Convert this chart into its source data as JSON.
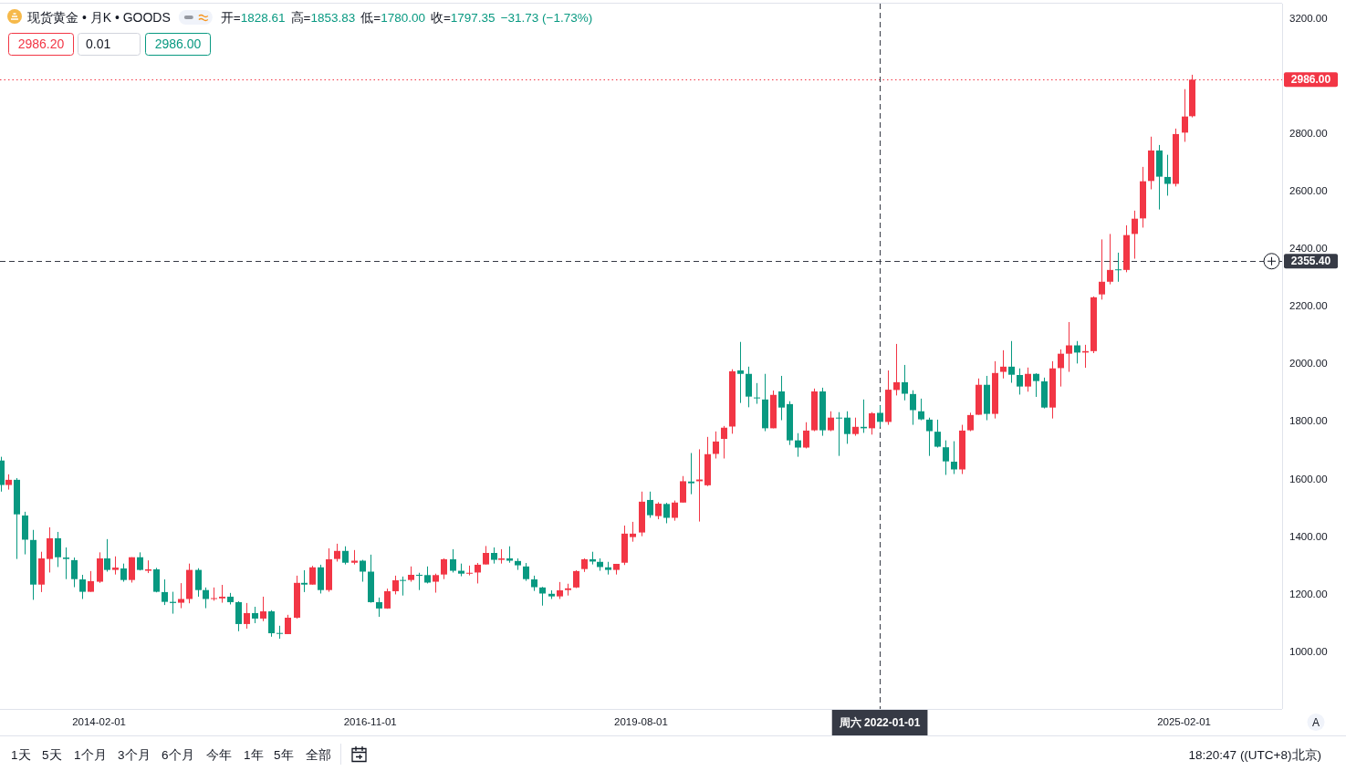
{
  "chart_data": {
    "type": "candlestick",
    "title": "现货黄金 • 月K • GOODS",
    "x": [
      "2013-02",
      "2013-03",
      "2013-04",
      "2013-05",
      "2013-06",
      "2013-07",
      "2013-08",
      "2013-09",
      "2013-10",
      "2013-11",
      "2013-12",
      "2014-01",
      "2014-02",
      "2014-03",
      "2014-04",
      "2014-05",
      "2014-06",
      "2014-07",
      "2014-08",
      "2014-09",
      "2014-10",
      "2014-11",
      "2014-12",
      "2015-01",
      "2015-02",
      "2015-03",
      "2015-04",
      "2015-05",
      "2015-06",
      "2015-07",
      "2015-08",
      "2015-09",
      "2015-10",
      "2015-11",
      "2015-12",
      "2016-01",
      "2016-02",
      "2016-03",
      "2016-04",
      "2016-05",
      "2016-06",
      "2016-07",
      "2016-08",
      "2016-09",
      "2016-10",
      "2016-11",
      "2016-12",
      "2017-01",
      "2017-02",
      "2017-03",
      "2017-04",
      "2017-05",
      "2017-06",
      "2017-07",
      "2017-08",
      "2017-09",
      "2017-10",
      "2017-11",
      "2017-12",
      "2018-01",
      "2018-02",
      "2018-03",
      "2018-04",
      "2018-05",
      "2018-06",
      "2018-07",
      "2018-08",
      "2018-09",
      "2018-10",
      "2018-11",
      "2018-12",
      "2019-01",
      "2019-02",
      "2019-03",
      "2019-04",
      "2019-05",
      "2019-06",
      "2019-07",
      "2019-08",
      "2019-09",
      "2019-10",
      "2019-11",
      "2019-12",
      "2020-01",
      "2020-02",
      "2020-03",
      "2020-04",
      "2020-05",
      "2020-06",
      "2020-07",
      "2020-08",
      "2020-09",
      "2020-10",
      "2020-11",
      "2020-12",
      "2021-01",
      "2021-02",
      "2021-03",
      "2021-04",
      "2021-05",
      "2021-06",
      "2021-07",
      "2021-08",
      "2021-09",
      "2021-10",
      "2021-11",
      "2021-12",
      "2022-01",
      "2022-02",
      "2022-03",
      "2022-04",
      "2022-05",
      "2022-06",
      "2022-07",
      "2022-08",
      "2022-09",
      "2022-10",
      "2022-11",
      "2022-12",
      "2023-01",
      "2023-02",
      "2023-03",
      "2023-04",
      "2023-05",
      "2023-06",
      "2023-07",
      "2023-08",
      "2023-09",
      "2023-10",
      "2023-11",
      "2023-12",
      "2024-01",
      "2024-02",
      "2024-03",
      "2024-04",
      "2024-05",
      "2024-06",
      "2024-07",
      "2024-08",
      "2024-09",
      "2024-10",
      "2024-11",
      "2024-12",
      "2025-01",
      "2025-02",
      "2025-03"
    ],
    "ohlc": [
      [
        1663,
        1676,
        1555,
        1578
      ],
      [
        1578,
        1615,
        1562,
        1596
      ],
      [
        1596,
        1602,
        1321,
        1476
      ],
      [
        1472,
        1485,
        1337,
        1388
      ],
      [
        1387,
        1422,
        1179,
        1232
      ],
      [
        1232,
        1346,
        1206,
        1323
      ],
      [
        1321,
        1431,
        1274,
        1393
      ],
      [
        1393,
        1415,
        1293,
        1327
      ],
      [
        1326,
        1361,
        1251,
        1321
      ],
      [
        1317,
        1326,
        1223,
        1251
      ],
      [
        1250,
        1266,
        1182,
        1207
      ],
      [
        1207,
        1279,
        1207,
        1244
      ],
      [
        1242,
        1344,
        1238,
        1323
      ],
      [
        1323,
        1390,
        1277,
        1283
      ],
      [
        1283,
        1330,
        1267,
        1291
      ],
      [
        1288,
        1305,
        1242,
        1248
      ],
      [
        1248,
        1327,
        1239,
        1327
      ],
      [
        1327,
        1344,
        1281,
        1283
      ],
      [
        1280,
        1316,
        1272,
        1285
      ],
      [
        1285,
        1290,
        1205,
        1207
      ],
      [
        1206,
        1250,
        1161,
        1172
      ],
      [
        1172,
        1207,
        1131,
        1168
      ],
      [
        1169,
        1237,
        1150,
        1182
      ],
      [
        1182,
        1305,
        1167,
        1283
      ],
      [
        1283,
        1289,
        1190,
        1213
      ],
      [
        1213,
        1222,
        1150,
        1182
      ],
      [
        1182,
        1222,
        1176,
        1185
      ],
      [
        1184,
        1231,
        1169,
        1190
      ],
      [
        1190,
        1203,
        1163,
        1171
      ],
      [
        1171,
        1174,
        1070,
        1095
      ],
      [
        1095,
        1168,
        1079,
        1133
      ],
      [
        1133,
        1155,
        1098,
        1114
      ],
      [
        1114,
        1190,
        1105,
        1139
      ],
      [
        1139,
        1143,
        1051,
        1063
      ],
      [
        1064,
        1089,
        1044,
        1061
      ],
      [
        1060,
        1127,
        1060,
        1117
      ],
      [
        1117,
        1263,
        1114,
        1238
      ],
      [
        1238,
        1282,
        1206,
        1232
      ],
      [
        1232,
        1297,
        1232,
        1292
      ],
      [
        1292,
        1301,
        1201,
        1213
      ],
      [
        1213,
        1358,
        1207,
        1320
      ],
      [
        1321,
        1374,
        1312,
        1349
      ],
      [
        1349,
        1365,
        1302,
        1308
      ],
      [
        1308,
        1352,
        1302,
        1315
      ],
      [
        1315,
        1318,
        1242,
        1277
      ],
      [
        1277,
        1336,
        1169,
        1171
      ],
      [
        1171,
        1187,
        1120,
        1149
      ],
      [
        1149,
        1218,
        1148,
        1209
      ],
      [
        1209,
        1263,
        1198,
        1247
      ],
      [
        1248,
        1260,
        1194,
        1246
      ],
      [
        1248,
        1295,
        1242,
        1266
      ],
      [
        1266,
        1273,
        1213,
        1265
      ],
      [
        1265,
        1295,
        1236,
        1239
      ],
      [
        1242,
        1270,
        1204,
        1265
      ],
      [
        1267,
        1323,
        1251,
        1320
      ],
      [
        1320,
        1355,
        1274,
        1280
      ],
      [
        1280,
        1305,
        1261,
        1270
      ],
      [
        1270,
        1298,
        1264,
        1273
      ],
      [
        1274,
        1307,
        1236,
        1301
      ],
      [
        1302,
        1366,
        1302,
        1342
      ],
      [
        1342,
        1361,
        1305,
        1318
      ],
      [
        1318,
        1355,
        1305,
        1323
      ],
      [
        1323,
        1365,
        1308,
        1315
      ],
      [
        1314,
        1323,
        1283,
        1299
      ],
      [
        1295,
        1307,
        1245,
        1251
      ],
      [
        1250,
        1263,
        1210,
        1223
      ],
      [
        1222,
        1224,
        1159,
        1201
      ],
      [
        1200,
        1212,
        1182,
        1191
      ],
      [
        1191,
        1241,
        1182,
        1212
      ],
      [
        1213,
        1235,
        1194,
        1219
      ],
      [
        1222,
        1282,
        1220,
        1279
      ],
      [
        1286,
        1323,
        1276,
        1320
      ],
      [
        1320,
        1346,
        1302,
        1312
      ],
      [
        1311,
        1323,
        1280,
        1293
      ],
      [
        1292,
        1311,
        1267,
        1283
      ],
      [
        1283,
        1304,
        1267,
        1304
      ],
      [
        1308,
        1437,
        1300,
        1409
      ],
      [
        1397,
        1450,
        1381,
        1409
      ],
      [
        1413,
        1555,
        1400,
        1520
      ],
      [
        1526,
        1555,
        1464,
        1473
      ],
      [
        1470,
        1518,
        1459,
        1513
      ],
      [
        1512,
        1516,
        1445,
        1464
      ],
      [
        1464,
        1524,
        1454,
        1517
      ],
      [
        1517,
        1609,
        1517,
        1591
      ],
      [
        1590,
        1689,
        1546,
        1584
      ],
      [
        1591,
        1702,
        1451,
        1597
      ],
      [
        1577,
        1745,
        1574,
        1685
      ],
      [
        1686,
        1764,
        1670,
        1729
      ],
      [
        1738,
        1783,
        1670,
        1777
      ],
      [
        1781,
        1980,
        1756,
        1973
      ],
      [
        1976,
        2075,
        1863,
        1964
      ],
      [
        1964,
        1989,
        1848,
        1885
      ],
      [
        1882,
        1932,
        1860,
        1879
      ],
      [
        1875,
        1964,
        1765,
        1775
      ],
      [
        1775,
        1906,
        1775,
        1891
      ],
      [
        1903,
        1957,
        1803,
        1847
      ],
      [
        1859,
        1869,
        1717,
        1733
      ],
      [
        1733,
        1758,
        1676,
        1708
      ],
      [
        1708,
        1796,
        1705,
        1767
      ],
      [
        1768,
        1913,
        1765,
        1903
      ],
      [
        1903,
        1916,
        1749,
        1768
      ],
      [
        1768,
        1834,
        1765,
        1812
      ],
      [
        1812,
        1831,
        1679,
        1810
      ],
      [
        1812,
        1834,
        1721,
        1755
      ],
      [
        1755,
        1812,
        1749,
        1780
      ],
      [
        1780,
        1875,
        1759,
        1775
      ],
      [
        1775,
        1831,
        1753,
        1827
      ],
      [
        1828.61,
        1853.83,
        1780.0,
        1797.35
      ],
      [
        1797,
        1976,
        1787,
        1909
      ],
      [
        1908,
        2068,
        1889,
        1935
      ],
      [
        1935,
        1995,
        1872,
        1895
      ],
      [
        1894,
        1907,
        1787,
        1838
      ],
      [
        1834,
        1878,
        1803,
        1806
      ],
      [
        1805,
        1812,
        1679,
        1765
      ],
      [
        1763,
        1805,
        1708,
        1711
      ],
      [
        1709,
        1733,
        1613,
        1660
      ],
      [
        1659,
        1730,
        1616,
        1632
      ],
      [
        1632,
        1787,
        1616,
        1767
      ],
      [
        1768,
        1829,
        1765,
        1821
      ],
      [
        1822,
        1948,
        1822,
        1926
      ],
      [
        1926,
        1957,
        1803,
        1825
      ],
      [
        1825,
        2008,
        1809,
        1967
      ],
      [
        1971,
        2046,
        1948,
        1989
      ],
      [
        1989,
        2078,
        1933,
        1961
      ],
      [
        1960,
        1983,
        1892,
        1920
      ],
      [
        1920,
        1986,
        1902,
        1964
      ],
      [
        1964,
        1966,
        1884,
        1939
      ],
      [
        1938,
        1951,
        1844,
        1847
      ],
      [
        1847,
        2008,
        1809,
        1983
      ],
      [
        1984,
        2049,
        1920,
        2034
      ],
      [
        2034,
        2144,
        1971,
        2063
      ],
      [
        2063,
        2078,
        2000,
        2038
      ],
      [
        2038,
        2065,
        1985,
        2043
      ],
      [
        2043,
        2233,
        2036,
        2230
      ],
      [
        2240,
        2431,
        2222,
        2284
      ],
      [
        2284,
        2450,
        2275,
        2325
      ],
      [
        2327,
        2385,
        2284,
        2325
      ],
      [
        2325,
        2480,
        2317,
        2446
      ],
      [
        2450,
        2531,
        2364,
        2503
      ],
      [
        2504,
        2683,
        2472,
        2633
      ],
      [
        2634,
        2788,
        2605,
        2740
      ],
      [
        2740,
        2759,
        2535,
        2649
      ],
      [
        2648,
        2725,
        2583,
        2624
      ],
      [
        2624,
        2816,
        2615,
        2797
      ],
      [
        2802,
        2953,
        2770,
        2858
      ],
      [
        2859,
        3003,
        2855,
        2986.0
      ]
    ],
    "colors": [
      "#089981",
      "#f23645",
      "#089981",
      "#089981",
      "#089981",
      "#f23645",
      "#f23645",
      "#089981",
      "#089981",
      "#089981",
      "#089981",
      "#f23645",
      "#f23645",
      "#089981",
      "#f23645",
      "#089981",
      "#f23645",
      "#089981",
      "#f23645",
      "#089981",
      "#089981",
      "#089981",
      "#f23645",
      "#f23645",
      "#089981",
      "#089981",
      "#f23645",
      "#f23645",
      "#089981",
      "#089981",
      "#f23645",
      "#089981",
      "#f23645",
      "#089981",
      "#089981",
      "#f23645",
      "#f23645",
      "#089981",
      "#f23645",
      "#089981",
      "#f23645",
      "#f23645",
      "#089981",
      "#f23645",
      "#089981",
      "#089981",
      "#089981",
      "#f23645",
      "#f23645",
      "#089981",
      "#f23645",
      "#089981",
      "#089981",
      "#f23645",
      "#f23645",
      "#089981",
      "#089981",
      "#f23645",
      "#f23645",
      "#f23645",
      "#089981",
      "#f23645",
      "#089981",
      "#089981",
      "#089981",
      "#089981",
      "#089981",
      "#089981",
      "#f23645",
      "#f23645",
      "#f23645",
      "#f23645",
      "#089981",
      "#089981",
      "#089981",
      "#f23645",
      "#f23645",
      "#f23645",
      "#f23645",
      "#089981",
      "#f23645",
      "#089981",
      "#f23645",
      "#f23645",
      "#089981",
      "#f23645",
      "#f23645",
      "#f23645",
      "#f23645",
      "#f23645",
      "#089981",
      "#089981",
      "#089981",
      "#089981",
      "#f23645",
      "#089981",
      "#089981",
      "#089981",
      "#f23645",
      "#f23645",
      "#089981",
      "#f23645",
      "#089981",
      "#089981",
      "#f23645",
      "#089981",
      "#f23645",
      "#089981",
      "#f23645",
      "#f23645",
      "#089981",
      "#089981",
      "#089981",
      "#089981",
      "#089981",
      "#089981",
      "#089981",
      "#f23645",
      "#f23645",
      "#f23645",
      "#089981",
      "#f23645",
      "#f23645",
      "#089981",
      "#089981",
      "#f23645",
      "#089981",
      "#089981",
      "#f23645",
      "#f23645",
      "#f23645",
      "#089981",
      "#f23645",
      "#f23645",
      "#f23645",
      "#f23645",
      "#089981",
      "#f23645",
      "#f23645",
      "#f23645",
      "#f23645",
      "#089981",
      "#089981",
      "#f23645",
      "#f23645",
      "#f23645"
    ],
    "xlim": [
      "2013-01-30",
      "2026-01-30"
    ],
    "xticks": [
      {
        "value": "2014-02-01",
        "label": "2014-02-01"
      },
      {
        "value": "2016-11-01",
        "label": "2016-11-01"
      },
      {
        "value": "2019-08-01",
        "label": "2019-08-01"
      },
      {
        "value": "2025-02-01",
        "label": "2025-02-01"
      }
    ],
    "ylim": [
      800,
      3250
    ],
    "yticks": [
      {
        "value": 1000,
        "label": "1000.00"
      },
      {
        "value": 1200,
        "label": "1200.00"
      },
      {
        "value": 1400,
        "label": "1400.00"
      },
      {
        "value": 1600,
        "label": "1600.00"
      },
      {
        "value": 1800,
        "label": "1800.00"
      },
      {
        "value": 2000,
        "label": "2000.00"
      },
      {
        "value": 2200,
        "label": "2200.00"
      },
      {
        "value": 2400,
        "label": "2400.00"
      },
      {
        "value": 2600,
        "label": "2600.00"
      },
      {
        "value": 2800,
        "label": "2800.00"
      },
      {
        "value": 3200,
        "label": "3200.00"
      }
    ],
    "ref_lines": [
      {
        "axis": "y",
        "value": 2986.0,
        "label": "2986.00",
        "color": "#f23645",
        "line_style": "dotted"
      },
      {
        "axis": "y",
        "value": 2355.4,
        "label": "2355.40",
        "color": "#363a45",
        "line_style": "dashed"
      },
      {
        "axis": "x",
        "value": "2022-01-01",
        "label": "周六 2022-01-01",
        "color": "#363a45",
        "line_style": "dashed"
      }
    ],
    "annotations": [
      "开=1828.61",
      "高=1853.83",
      "低=1780.00",
      "收=1797.35",
      "−31.73 (−1.73%)",
      "2986.20",
      "0.01",
      "2986.00",
      "A",
      "1天",
      "5天",
      "1个月",
      "3个月",
      "6个月",
      "今年",
      "1年",
      "5年",
      "全部",
      "18:20:47 ((UTC+8)北京)"
    ]
  }
}
